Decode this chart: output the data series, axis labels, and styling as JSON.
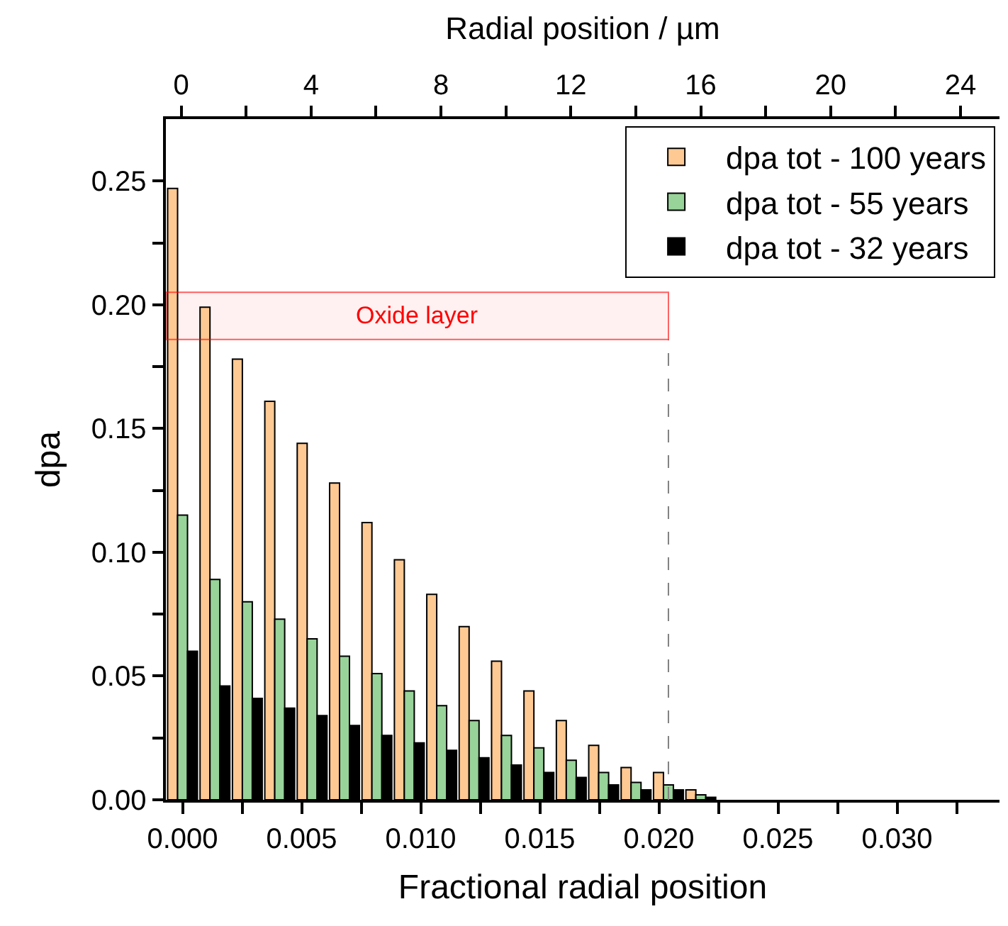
{
  "chart_data": {
    "type": "bar",
    "xlabel": "Fractional radial position",
    "ylabel": "dpa",
    "x2label": "Radial position / µm",
    "x": [
      0,
      0.00136,
      0.00272,
      0.00408,
      0.00544,
      0.0068,
      0.00816,
      0.00952,
      0.01088,
      0.01224,
      0.0136,
      0.01496,
      0.01632,
      0.01768,
      0.01904,
      0.0204,
      0.02176
    ],
    "series": [
      {
        "name": "dpa tot - 100 years",
        "color": "#ffc993",
        "values": [
          0.247,
          0.199,
          0.178,
          0.161,
          0.144,
          0.128,
          0.112,
          0.097,
          0.083,
          0.07,
          0.056,
          0.044,
          0.032,
          0.022,
          0.013,
          0.011,
          0.004
        ]
      },
      {
        "name": "dpa tot - 55 years",
        "color": "#98d39a",
        "values": [
          0.115,
          0.089,
          0.08,
          0.073,
          0.065,
          0.058,
          0.051,
          0.044,
          0.038,
          0.032,
          0.026,
          0.021,
          0.016,
          0.011,
          0.007,
          0.006,
          0.002
        ]
      },
      {
        "name": "dpa tot - 32 years",
        "color": "#000000",
        "values": [
          0.06,
          0.046,
          0.041,
          0.037,
          0.034,
          0.03,
          0.026,
          0.023,
          0.02,
          0.017,
          0.014,
          0.011,
          0.009,
          0.006,
          0.004,
          0.004,
          0.001
        ]
      }
    ],
    "xlim": [
      -0.0007,
      0.0343
    ],
    "xticks": [
      {
        "value": 0,
        "label": "0.000"
      },
      {
        "value": 0.0025,
        "label": null
      },
      0.005,
      {
        "value": 0.0075,
        "label": null
      },
      {
        "value": 0.01,
        "label": "0.010"
      },
      {
        "value": 0.0125,
        "label": null
      },
      0.015,
      {
        "value": 0.0175,
        "label": null
      },
      {
        "value": 0.02,
        "label": "0.020"
      },
      {
        "value": 0.0225,
        "label": null
      },
      0.025,
      {
        "value": 0.0275,
        "label": null
      },
      {
        "value": 0.03,
        "label": "0.030"
      },
      {
        "value": 0.0325,
        "label": null
      }
    ],
    "x2lim": [
      -0.47,
      25.2
    ],
    "x2ticks": [
      0,
      {
        "value": 2,
        "label": null
      },
      4,
      {
        "value": 6,
        "label": null
      },
      8,
      {
        "value": 10,
        "label": null
      },
      12,
      {
        "value": 14,
        "label": null
      },
      16,
      {
        "value": 18,
        "label": null
      },
      20,
      {
        "value": 22,
        "label": null
      },
      24
    ],
    "ylim": [
      0,
      0.275
    ],
    "yticks": [
      {
        "value": 0,
        "label": "0.00"
      },
      {
        "value": 0.025,
        "label": null
      },
      {
        "value": 0.05,
        "label": "0.05"
      },
      {
        "value": 0.075,
        "label": null
      },
      {
        "value": 0.1,
        "label": "0.10"
      },
      {
        "value": 0.125,
        "label": null
      },
      {
        "value": 0.15,
        "label": "0.15"
      },
      {
        "value": 0.175,
        "label": null
      },
      {
        "value": 0.2,
        "label": "0.20"
      },
      {
        "value": 0.225,
        "label": null
      },
      {
        "value": 0.25,
        "label": "0.25"
      }
    ],
    "bands": [
      {
        "axis": "y",
        "from": 0.186,
        "to": 0.205,
        "label": "Oxide layer",
        "color": "#ff0000"
      }
    ],
    "ref_lines": [
      {
        "axis": "x",
        "value": 0.0204,
        "color": "#808080",
        "line_style": "dashed"
      }
    ],
    "grid": false,
    "legend": "top right"
  }
}
